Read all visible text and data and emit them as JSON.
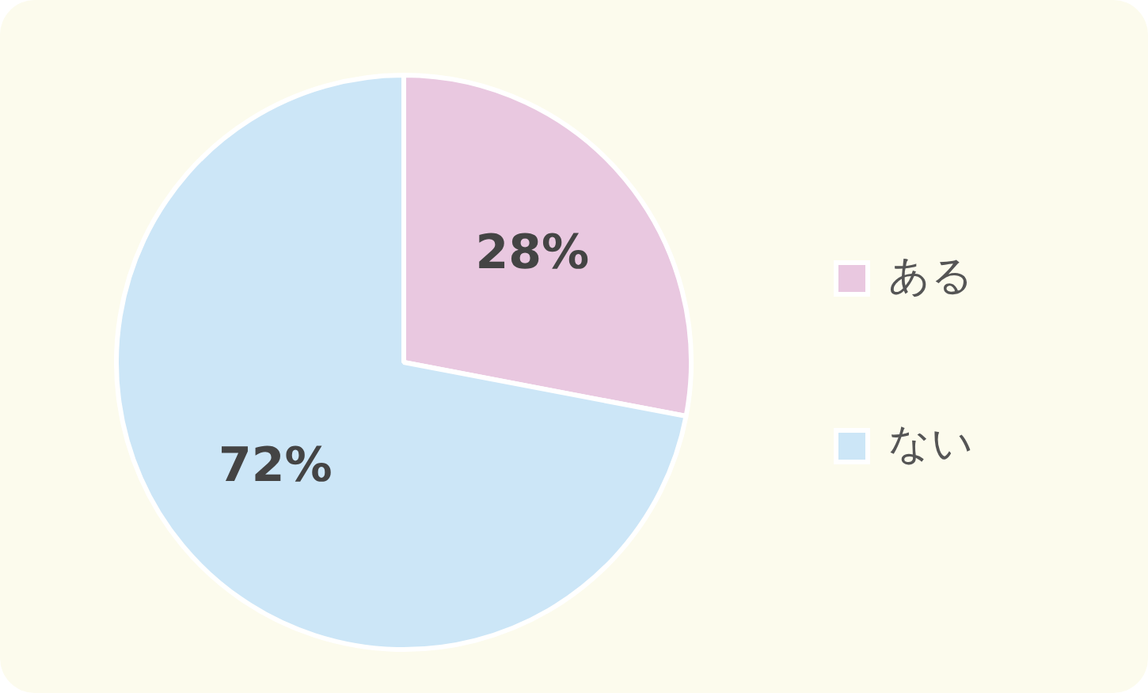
{
  "chart_data": {
    "type": "pie",
    "categories": [
      "ある",
      "ない"
    ],
    "values": [
      28,
      72
    ],
    "value_labels": [
      "28%",
      "72%"
    ],
    "colors": [
      "#e9c8e0",
      "#cce6f7"
    ],
    "legend": "right"
  }
}
